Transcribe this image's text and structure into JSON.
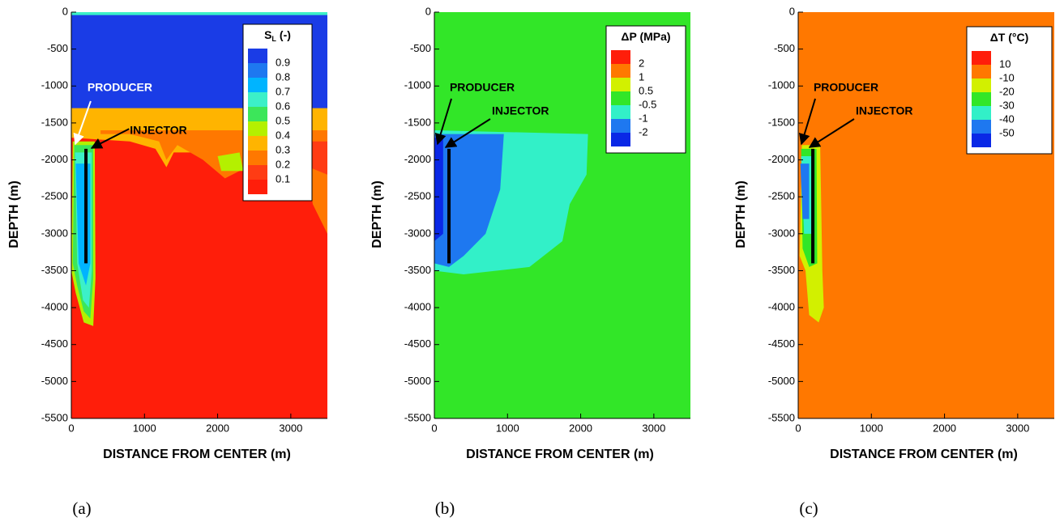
{
  "chart_data": [
    {
      "type": "contour",
      "x_label": "DISTANCE FROM CENTER (m)",
      "y_label": "DEPTH (m)",
      "caption": "(a)",
      "xlim": [
        0,
        3500
      ],
      "xticks": [
        0,
        1000,
        2000,
        3000
      ],
      "ylim": [
        -5500,
        0
      ],
      "yticks": [
        0,
        -500,
        -1000,
        -1500,
        -2000,
        -2500,
        -3000,
        -3500,
        -4000,
        -4500,
        -5000,
        -5500
      ],
      "legend": {
        "title": "S",
        "title_subscript": "L",
        "title_suffix": "(-)",
        "levels": [
          0.9,
          0.8,
          0.7,
          0.6,
          0.5,
          0.4,
          0.3,
          0.2,
          0.1
        ],
        "colors": [
          "#1a3ce6",
          "#1e78f0",
          "#00b4ff",
          "#3cf0c8",
          "#3ce65a",
          "#b4f000",
          "#ffb400",
          "#ff7800",
          "#ff3c14",
          "#ff1e0a"
        ]
      },
      "annotations": [
        "PRODUCER",
        "INJECTOR"
      ]
    },
    {
      "type": "contour",
      "x_label": "DISTANCE FROM CENTER (m)",
      "y_label": "DEPTH (m)",
      "caption": "(b)",
      "xlim": [
        0,
        3500
      ],
      "xticks": [
        0,
        1000,
        2000,
        3000
      ],
      "ylim": [
        -5500,
        0
      ],
      "yticks": [
        0,
        -500,
        -1000,
        -1500,
        -2000,
        -2500,
        -3000,
        -3500,
        -4000,
        -4500,
        -5000,
        -5500
      ],
      "legend": {
        "title": "ΔP (MPa)",
        "levels": [
          2,
          1,
          0.5,
          -0.5,
          -1,
          -2
        ],
        "colors": [
          "#ff1e0a",
          "#ff7800",
          "#d2f000",
          "#32e628",
          "#32f0c8",
          "#1e78f0",
          "#0a28e6"
        ]
      },
      "annotations": [
        "PRODUCER",
        "INJECTOR"
      ]
    },
    {
      "type": "contour",
      "x_label": "DISTANCE FROM CENTER (m)",
      "y_label": "DEPTH (m)",
      "caption": "(c)",
      "xlim": [
        0,
        3500
      ],
      "xticks": [
        0,
        1000,
        2000,
        3000
      ],
      "ylim": [
        -5500,
        0
      ],
      "yticks": [
        0,
        -500,
        -1000,
        -1500,
        -2000,
        -2500,
        -3000,
        -3500,
        -4000,
        -4500,
        -5000,
        -5500
      ],
      "legend": {
        "title": "ΔT (°C)",
        "levels": [
          10,
          -10,
          -20,
          -30,
          -40,
          -50
        ],
        "colors": [
          "#ff1e0a",
          "#ff7800",
          "#d2f000",
          "#32e628",
          "#32f0c8",
          "#1e78f0",
          "#0a28e6"
        ]
      },
      "annotations": [
        "PRODUCER",
        "INJECTOR"
      ]
    }
  ]
}
